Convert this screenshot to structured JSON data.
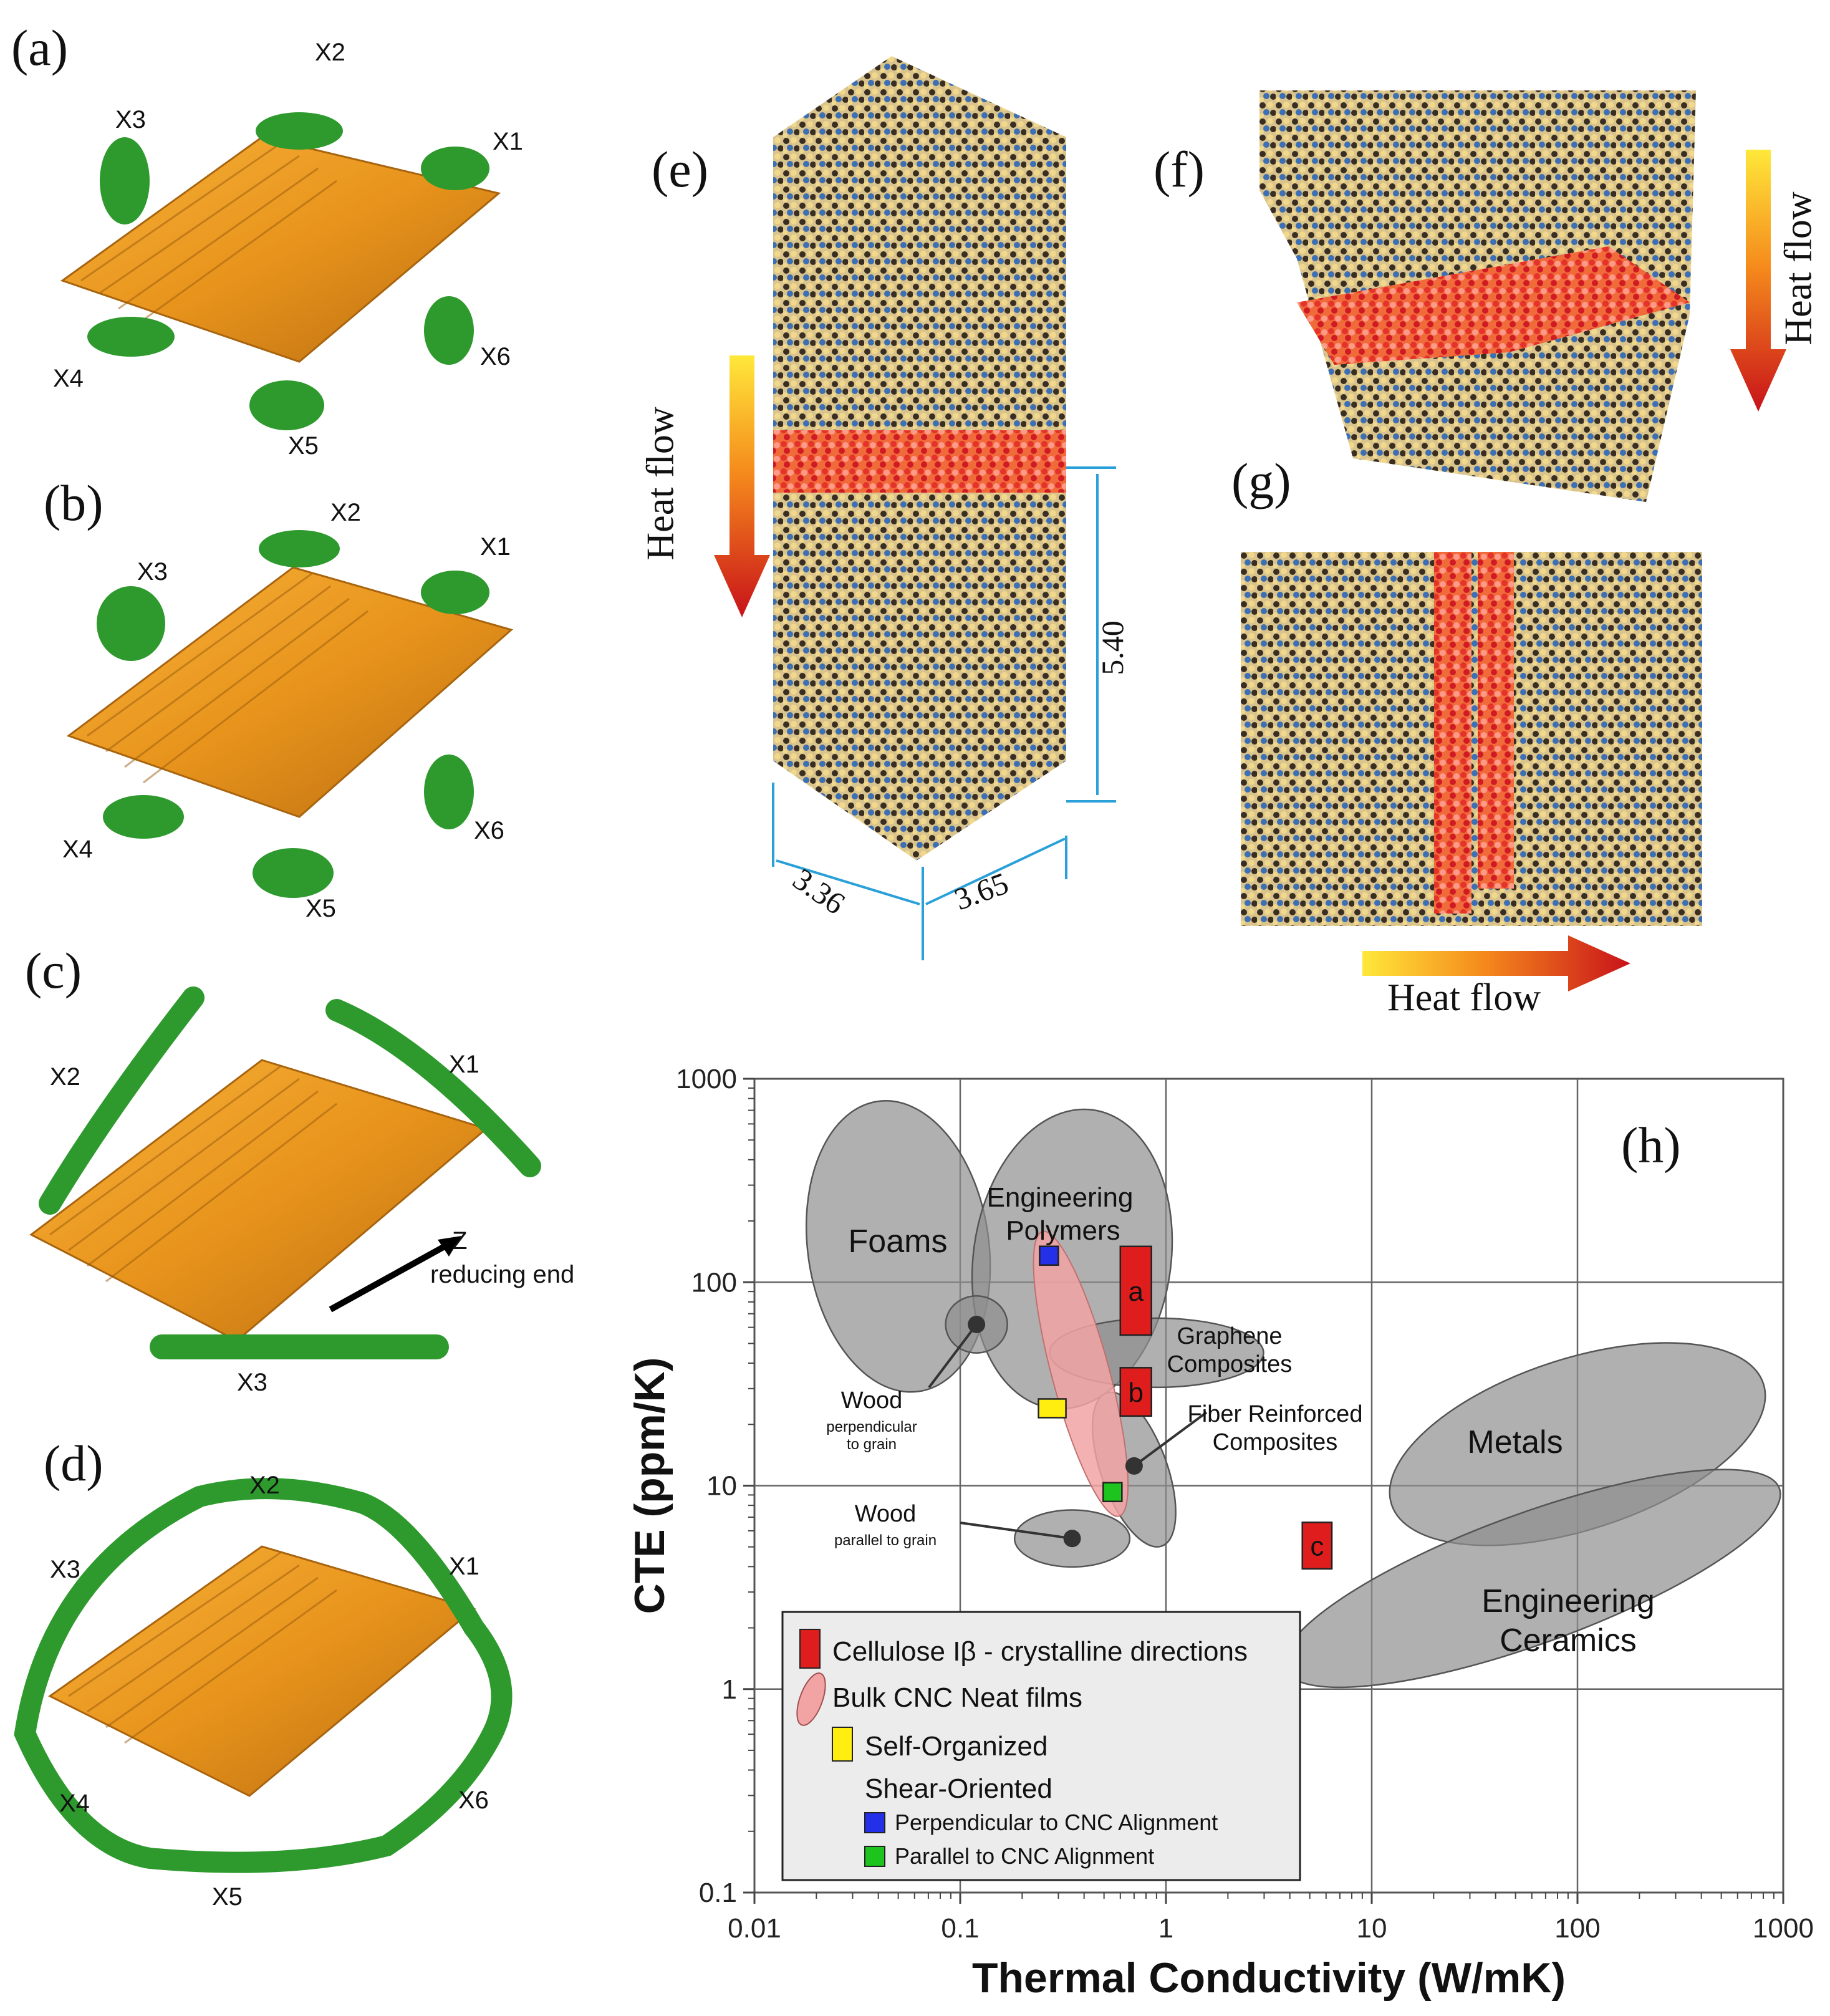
{
  "panels": {
    "a": {
      "letter": "(a)",
      "chains": [
        "X1",
        "X2",
        "X3",
        "X4",
        "X5",
        "X6"
      ]
    },
    "b": {
      "letter": "(b)",
      "chains": [
        "X1",
        "X2",
        "X3",
        "X4",
        "X5",
        "X6"
      ]
    },
    "c": {
      "letter": "(c)",
      "chains": [
        "X1",
        "X2",
        "X3"
      ],
      "axis": "Z",
      "axis_note": "reducing end"
    },
    "d": {
      "letter": "(d)",
      "chains": [
        "X1",
        "X2",
        "X3",
        "X4",
        "X5",
        "X6"
      ]
    },
    "e": {
      "letter": "(e)",
      "heat": "Heat flow",
      "dims": [
        "5.40",
        "3.36",
        "3.65"
      ]
    },
    "f": {
      "letter": "(f)",
      "heat": "Heat flow"
    },
    "g": {
      "letter": "(g)",
      "heat": "Heat flow"
    },
    "h": {
      "letter": "(h)"
    }
  },
  "colors": {
    "crystal": "#f0a020",
    "chain": "#2e9a2e",
    "carbon": "#3a2e22",
    "oxygen": "#f2d88c",
    "blue_atom": "#3d6fb5",
    "hot": "#e5322a",
    "region": "#8f8f8f",
    "cellulose": "#e01d1d",
    "cnc_film": "#f2a3a3",
    "self_org": "#ffee10",
    "perp": "#2330e8",
    "para": "#1ec41e"
  },
  "chart_data": {
    "type": "scatter",
    "xlabel": "Thermal Conductivity (W/mK)",
    "ylabel": "CTE  (ppm/K)",
    "xscale": "log",
    "yscale": "log",
    "xlim": [
      0.01,
      1000
    ],
    "ylim": [
      0.1,
      1000
    ],
    "x_ticks": [
      "0.01",
      "0.1",
      "1",
      "10",
      "100",
      "1000"
    ],
    "y_ticks": [
      "0.1",
      "1",
      "10",
      "100",
      "1000"
    ],
    "grid": true,
    "regions": [
      {
        "label": "Foams",
        "cx": 0.05,
        "cy": 150
      },
      {
        "label": "Engineering Polymers",
        "cx": 0.35,
        "cy": 130
      },
      {
        "label": "Graphene Composites",
        "cx": 0.9,
        "cy": 45
      },
      {
        "label": "Wood",
        "note": "perpendicular to grain",
        "cx": 0.12,
        "cy": 62
      },
      {
        "label": "Fiber Reinforced Composites",
        "cx": 0.7,
        "cy": 12
      },
      {
        "label": "Wood",
        "note": "parallel to grain",
        "cx": 0.35,
        "cy": 5.5
      },
      {
        "label": "Metals",
        "cx": 100,
        "cy": 16
      },
      {
        "label": "Engineering Ceramics",
        "cx": 60,
        "cy": 3.5
      }
    ],
    "markers": [
      {
        "label": "a",
        "group": "Cellulose Iβ - crystalline directions",
        "x": [
          0.6,
          0.85
        ],
        "y": [
          55,
          150
        ]
      },
      {
        "label": "b",
        "group": "Cellulose Iβ - crystalline directions",
        "x": [
          0.6,
          0.85
        ],
        "y": [
          22,
          38
        ]
      },
      {
        "label": "c",
        "group": "Cellulose Iβ - crystalline directions",
        "x": [
          4.6,
          6.4
        ],
        "y": [
          3.9,
          6.6
        ]
      },
      {
        "label": "",
        "group": "Self-Organized",
        "x": 0.28,
        "y": 24
      },
      {
        "label": "",
        "group": "Perpendicular to CNC Alignment",
        "x": 0.27,
        "y": 135
      },
      {
        "label": "",
        "group": "Parallel to CNC Alignment",
        "x": 0.55,
        "y": 9.3
      }
    ],
    "legend": {
      "placement": "bottom-left",
      "entries": [
        "Cellulose Iβ - crystalline directions",
        "Bulk CNC Neat films",
        "Self-Organized",
        "Shear-Oriented",
        "Perpendicular to CNC Alignment",
        "Parallel to CNC Alignment"
      ]
    }
  }
}
